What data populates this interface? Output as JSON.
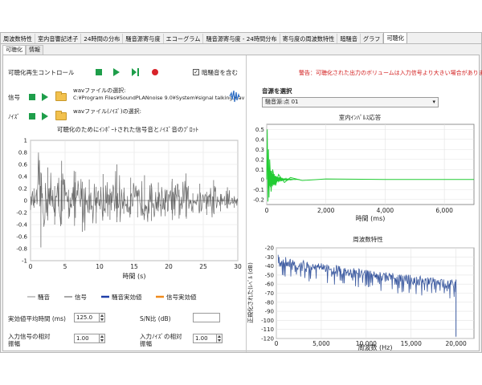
{
  "tabs": [
    "周波数特性",
    "室内音響記述子",
    "24時間の分布",
    "騒音源寄与度",
    "エコーグラム",
    "騒音源寄与度 - 24時間分布",
    "寄与度の周波数特性",
    "暗騒音",
    "グラフ",
    "可聴化"
  ],
  "active_tab": "可聴化",
  "subtabs": [
    "可聴化",
    "情報"
  ],
  "active_subtab": "可聴化",
  "controls": {
    "playback_title": "可聴化再生コントロール",
    "include_background_label": "暗騒音を含む",
    "include_background_checked": true,
    "signal_label": "信号",
    "noise_label": "ﾉｲｽﾞ",
    "signal_wav_title": "wavファイルの選択:",
    "signal_wav_path": "C:¥Program Files¥SoundPLANnoise 9.0¥System¥signal talking.wav",
    "noise_wav_title": "wavファイル(ﾉｲｽﾞ)の選択:"
  },
  "warning": "警告：可聴化された出力のボリュームは入力信号より大きい場合があります。",
  "source_select": {
    "label": "音源を選択",
    "value": "騒音源:点 01"
  },
  "bottom": {
    "avg_time_label": "実効値平均時間 (ms)",
    "avg_time_value": "125.0",
    "snr_label": "S/N比 (dB)",
    "snr_value": "",
    "signal_gain_label": "入力信号の相対",
    "signal_gain_label2": "振幅",
    "signal_gain_value": "1.00",
    "noise_gain_label": "入力ﾉｲｽﾞの相対",
    "noise_gain_label2": "振幅",
    "noise_gain_value": "1.00"
  },
  "charts": {
    "waveform": {
      "title": "可聴化のためにｲﾝﾎﾟｰﾄされた信号音とﾉｲｽﾞ音のﾌﾟﾛｯﾄ",
      "xlabel": "時間 (s)",
      "xticks": [
        "0",
        "5",
        "10",
        "15",
        "20",
        "25",
        "30"
      ],
      "yticks": [
        "1",
        "0.8",
        "0.6",
        "0.4",
        "0.2",
        "0",
        "-0.2",
        "-0.4",
        "-0.6",
        "-0.8",
        "-1"
      ],
      "legend": [
        "騒音",
        "信号",
        "騒音実効値",
        "信号実効値"
      ]
    },
    "impulse": {
      "title": "室内ｲﾝﾊﾟﾙｽ応答",
      "xlabel": "時間 (ms)",
      "xticks": [
        "0",
        "2,000",
        "4,000",
        "6,000"
      ],
      "yticks": [
        "0.5",
        "0.4",
        "0.3",
        "0.2",
        "0.1",
        "0",
        "-0.1",
        "-0.2"
      ]
    },
    "spectrum": {
      "title": "周波数特性",
      "xlabel": "周波数 (Hz)",
      "ylabel": "正規化された(ﾚﾍﾞﾙ (dB)",
      "xticks": [
        "0",
        "5,000",
        "10,000",
        "15,000",
        "20,000"
      ],
      "yticks": [
        "-20",
        "-30",
        "-40",
        "-50",
        "-60",
        "-70",
        "-80",
        "-90",
        "-100",
        "-110",
        "-120"
      ]
    }
  },
  "chart_data": [
    {
      "type": "line",
      "title": "可聴化のためにｲﾝﾎﾟｰﾄされた信号音とﾉｲｽﾞ音のﾌﾟﾛｯﾄ",
      "xlabel": "時間 (s)",
      "ylabel": "",
      "xlim": [
        0,
        30
      ],
      "ylim": [
        -1,
        1
      ],
      "series": [
        {
          "name": "信号",
          "x": [
            0,
            1,
            2,
            3,
            4,
            5,
            6,
            7,
            8,
            9,
            10,
            11,
            12,
            13,
            14,
            15,
            16,
            17,
            18,
            19,
            20,
            21,
            22,
            23,
            24,
            25,
            26,
            27,
            28,
            29
          ],
          "y": [
            0.2,
            -0.78,
            0.55,
            -0.4,
            0.66,
            -0.3,
            0.48,
            -0.52,
            0.35,
            -0.38,
            0.44,
            -0.32,
            0.6,
            -0.22,
            0.38,
            -0.28,
            0.42,
            -0.34,
            0.3,
            -0.26,
            0.36,
            -0.3,
            0.45,
            -0.2,
            0.28,
            -0.24,
            0.34,
            -0.18,
            0.22,
            -0.12
          ]
        }
      ]
    },
    {
      "type": "line",
      "title": "室内ｲﾝﾊﾟﾙｽ応答",
      "xlabel": "時間 (ms)",
      "ylabel": "",
      "xlim": [
        0,
        7000
      ],
      "ylim": [
        -0.25,
        0.55
      ],
      "series": [
        {
          "name": "",
          "x": [
            0,
            20,
            40,
            60,
            80,
            100,
            150,
            200,
            300,
            400,
            600,
            800,
            1200,
            2000,
            4000,
            7000
          ],
          "y": [
            0,
            0.5,
            -0.22,
            0.3,
            -0.18,
            0.2,
            -0.12,
            0.1,
            -0.06,
            0.05,
            -0.03,
            0.02,
            -0.01,
            0.005,
            0,
            0
          ]
        }
      ]
    },
    {
      "type": "line",
      "title": "周波数特性",
      "xlabel": "周波数 (Hz)",
      "ylabel": "正規化された(ﾚﾍﾞﾙ (dB)",
      "xlim": [
        0,
        22000
      ],
      "ylim": [
        -120,
        -20
      ],
      "series": [
        {
          "name": "",
          "x": [
            200,
            1000,
            2000,
            3000,
            4000,
            5000,
            6000,
            7000,
            8000,
            9000,
            10000,
            11000,
            12000,
            13000,
            14000,
            15000,
            16000,
            17000,
            18000,
            19000,
            20000
          ],
          "y": [
            -27,
            -30,
            -32,
            -34,
            -36,
            -37,
            -38,
            -40,
            -41,
            -43,
            -44,
            -45,
            -46,
            -48,
            -49,
            -50,
            -51,
            -52,
            -53,
            -54,
            -55
          ]
        }
      ]
    }
  ],
  "colors": {
    "signal_line": "#6e6e6e",
    "noise_line": "#a0a0a0",
    "noise_rms": "#1f3fa8",
    "signal_rms": "#f08a1c",
    "impulse_line": "#22cc33",
    "spectrum_fill": "#3c5aa0",
    "accent_green": "#1e9e4a",
    "warning_red": "#d21b1b"
  }
}
